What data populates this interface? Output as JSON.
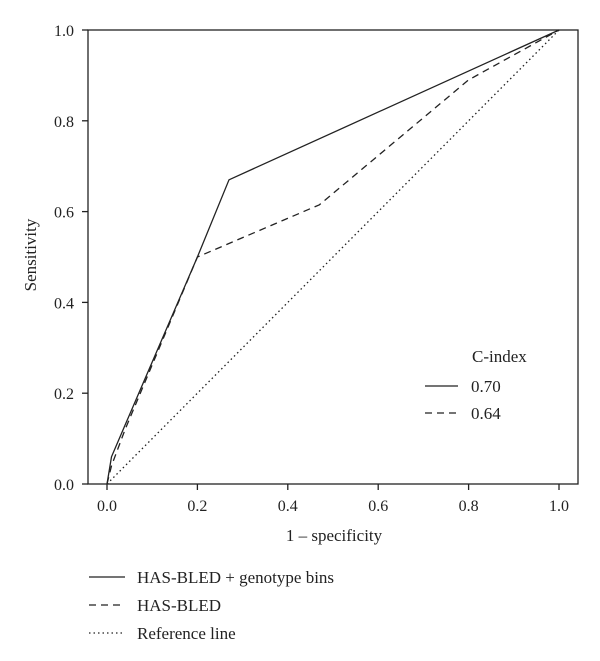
{
  "chart_data": {
    "type": "line",
    "title": "",
    "xlabel": "1 – specificity",
    "ylabel": "Sensitivity",
    "xlim": [
      0.0,
      1.0
    ],
    "ylim": [
      0.0,
      1.0
    ],
    "xticks": [
      "0.0",
      "0.2",
      "0.4",
      "0.6",
      "0.8",
      "1.0"
    ],
    "yticks": [
      "0.0",
      "0.2",
      "0.4",
      "0.6",
      "0.8",
      "1.0"
    ],
    "grid": false,
    "inset_legend": {
      "title": "C-index",
      "placement": "bottom-right",
      "entries": [
        {
          "style": "solid",
          "label": "0.70"
        },
        {
          "style": "dashed",
          "label": "0.64"
        }
      ]
    },
    "series": [
      {
        "name": "HAS-BLED + genotype bins",
        "style": "solid",
        "x": [
          0.0,
          0.01,
          0.04,
          0.2,
          0.27,
          1.0
        ],
        "y": [
          0.0,
          0.06,
          0.13,
          0.5,
          0.67,
          1.0
        ]
      },
      {
        "name": "HAS-BLED",
        "style": "dashed",
        "x": [
          0.0,
          0.01,
          0.04,
          0.2,
          0.47,
          0.8,
          1.0
        ],
        "y": [
          0.0,
          0.04,
          0.12,
          0.5,
          0.615,
          0.89,
          1.0
        ]
      },
      {
        "name": "Reference line",
        "style": "dotted",
        "x": [
          0.0,
          1.0
        ],
        "y": [
          0.0,
          1.0
        ]
      }
    ],
    "bottom_legend": [
      {
        "style": "solid",
        "label": "HAS-BLED + genotype bins"
      },
      {
        "style": "dashed",
        "label": "HAS-BLED"
      },
      {
        "style": "dotted",
        "label": "Reference line"
      }
    ],
    "line_color": "#222222"
  }
}
